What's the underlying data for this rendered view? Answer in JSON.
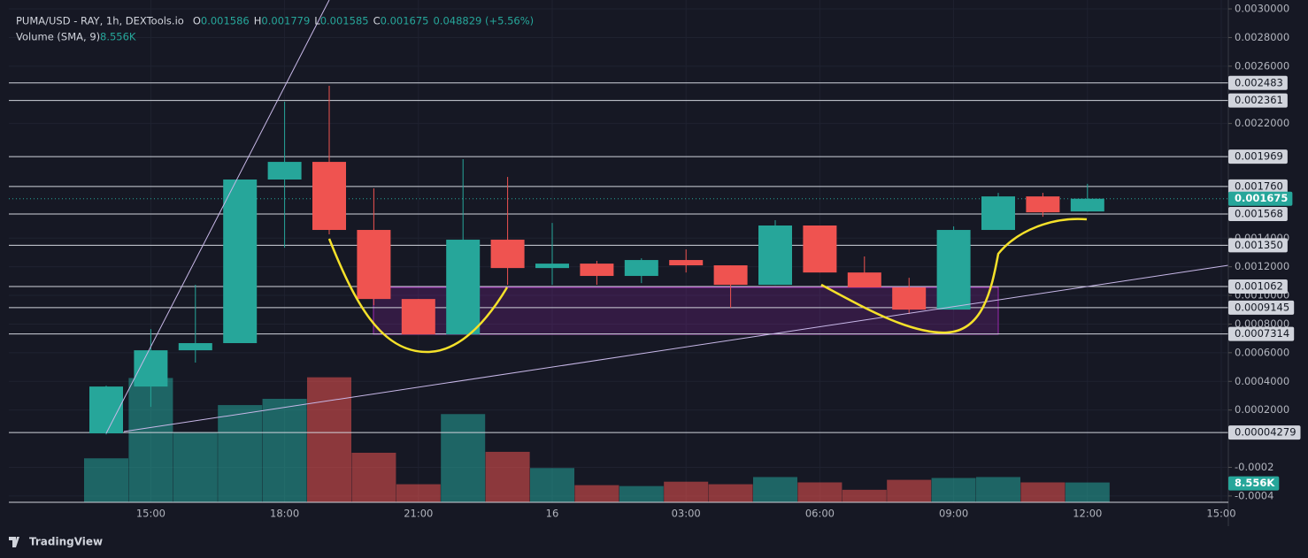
{
  "chart_data": {
    "type": "candlestick",
    "title": "PUMA/USD - RAY, 1h, DEXTools.io",
    "header_keys": [
      "O",
      "H",
      "L",
      "C"
    ],
    "change": "0.048829 (+5.56%)",
    "volume_name": "Volume (SMA, 9)",
    "volume_label": "8.556K",
    "up_color": "#26a69a",
    "down_color": "#ef5350",
    "categories": [
      null,
      "15:00",
      null,
      null,
      "18:00",
      null,
      null,
      "21:00",
      null,
      null,
      "16",
      null,
      null,
      "03:00",
      null,
      null,
      "06:00",
      null,
      null,
      "09:00",
      null,
      null,
      "12:00",
      null,
      null,
      "15:00"
    ],
    "open": [
      3.7e-05,
      0.000364,
      0.000617,
      0.000667,
      0.001809,
      0.001932,
      0.001457,
      0.000975,
      0.000728,
      0.001389,
      0.001191,
      0.001222,
      0.001136,
      0.001247,
      0.00121,
      0.001074,
      0.001488,
      0.00116,
      0.001056,
      0.000901,
      0.001457,
      0.001691,
      0.001586,
      null,
      null,
      null
    ],
    "high": [
      0.00037,
      0.000765,
      0.001074,
      0.001809,
      0.002352,
      0.002463,
      0.001747,
      0.000975,
      0.001951,
      0.001827,
      0.001506,
      0.001241,
      0.001259,
      0.001321,
      0.00121,
      0.001525,
      0.001488,
      0.001272,
      0.001123,
      0.001482,
      0.001716,
      0.001716,
      0.001779,
      null,
      null,
      null
    ],
    "low": [
      3e-05,
      0.000222,
      0.000531,
      0.000667,
      0.001333,
      0.001426,
      0.000932,
      0.000728,
      0.000728,
      0.001074,
      0.001074,
      0.001074,
      0.001086,
      0.00116,
      0.000914,
      0.001074,
      0.00116,
      0.001056,
      0.00087,
      0.000901,
      0.001457,
      0.001549,
      0.001585,
      null,
      null,
      null
    ],
    "close": [
      0.000364,
      0.000617,
      0.000667,
      0.001809,
      0.001932,
      0.001457,
      0.000975,
      0.000728,
      0.001389,
      0.001191,
      0.001222,
      0.001136,
      0.001247,
      0.00121,
      0.001074,
      0.001488,
      0.00116,
      0.001056,
      0.000901,
      0.001457,
      0.001691,
      0.00158,
      0.001675,
      null,
      null,
      null
    ],
    "volume": [
      19000,
      53700,
      30300,
      42000,
      44700,
      54000,
      21400,
      7800,
      38100,
      21800,
      14800,
      7400,
      7000,
      8900,
      7800,
      10900,
      8600,
      5400,
      9700,
      10500,
      10900,
      8600,
      8556,
      null,
      null,
      null
    ],
    "ylim": [
      -0.000444,
      0.003062
    ],
    "volume_ylim": [
      0,
      217000
    ],
    "yticks": [
      {
        "value": 0.003,
        "label": "0.0030000"
      },
      {
        "value": 0.0028,
        "label": "0.0028000"
      },
      {
        "value": 0.0026,
        "label": "0.0026000"
      },
      {
        "value": 0.0022,
        "label": "0.0022000"
      },
      {
        "value": 0.0014,
        "label": "0.0014000"
      },
      {
        "value": 0.0012,
        "label": "0.0012000"
      },
      {
        "value": 0.001,
        "label": "0.0010000"
      },
      {
        "value": 0.0008,
        "label": "0.0008000"
      },
      {
        "value": 0.0006,
        "label": "0.0006000"
      },
      {
        "value": 0.0004,
        "label": "0.0004000"
      },
      {
        "value": 0.0002,
        "label": "0.0002000"
      },
      {
        "value": -0.0002,
        "label": "-0.0002"
      },
      {
        "value": -0.0004,
        "label": "-0.0004"
      }
    ],
    "levels": [
      0.002483,
      0.002361,
      0.001969,
      {
        "value": 0.00176,
        "label": "0.001760"
      },
      0.001568,
      {
        "value": 0.00135,
        "label": "0.001350"
      },
      0.001062,
      0.0009145,
      0.0007314,
      4.279e-05
    ],
    "brand": "TradingView"
  }
}
